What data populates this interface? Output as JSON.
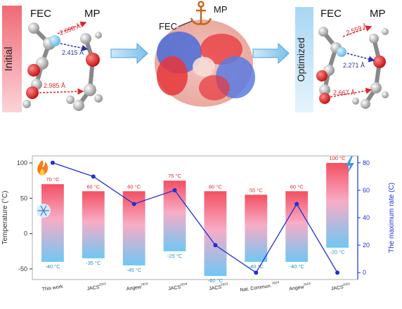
{
  "top_panel": {
    "initial": {
      "side_label": "Initial",
      "label_fec": "FEC",
      "label_mp": "MP",
      "distances": [
        "2.698 Å",
        "2.415 Å",
        "2.985 Å"
      ]
    },
    "middle": {
      "label_fec": "FEC",
      "label_mp": "MP"
    },
    "optimized": {
      "side_label": "Optimized",
      "label_fec": "FEC",
      "label_mp": "MP",
      "distances": [
        "2.559 Å",
        "2.271 Å",
        "2.667 Å"
      ]
    },
    "colors": {
      "red_arrow": "#e0252b",
      "blue_arrow": "#2a2fb0",
      "accent_blue": "#4aa3e0"
    }
  },
  "chart_data": {
    "type": "bar",
    "categories": [
      "This work",
      "JACS",
      "Angew",
      "JACS",
      "JACS",
      "Nat. Commun.",
      "Angew",
      "JACS"
    ],
    "superscripts": [
      "",
      "2023",
      "2024",
      "2024",
      "2023",
      "2024",
      "2024",
      "2023"
    ],
    "series": [
      {
        "values": [
          70,
          60,
          60,
          75,
          60,
          55,
          60,
          100
        ],
        "labels": [
          "70 °C",
          "60 °C",
          "60 °C",
          "75 °C",
          "60 °C",
          "55 °C",
          "60 °C",
          "100 °C"
        ]
      },
      {
        "values": [
          -40,
          -35,
          -45,
          -25,
          -60,
          -40,
          -40,
          -20
        ],
        "labels": [
          "-40 °C",
          "-35 °C",
          "-45 °C",
          "-25 °C",
          "-60 °C",
          "-40 °C",
          "-40 °C",
          "-20 °C"
        ]
      }
    ],
    "line": {
      "values": [
        80,
        70,
        50,
        60,
        20,
        0,
        50,
        0
      ]
    },
    "ylabel": "Temperature (°C)",
    "y2label": "The maximum rate (C)",
    "ylim": [
      -65,
      110
    ],
    "y2lim": [
      -5,
      85
    ],
    "yticks": [
      -50,
      0,
      50,
      100
    ],
    "y2ticks": [
      0,
      20,
      40,
      60,
      80
    ],
    "colors": {
      "hot": "#f0485a",
      "cold": "#6cc4f0",
      "line": "#1f2fd6",
      "right_axis": "#1f2fd6"
    }
  }
}
